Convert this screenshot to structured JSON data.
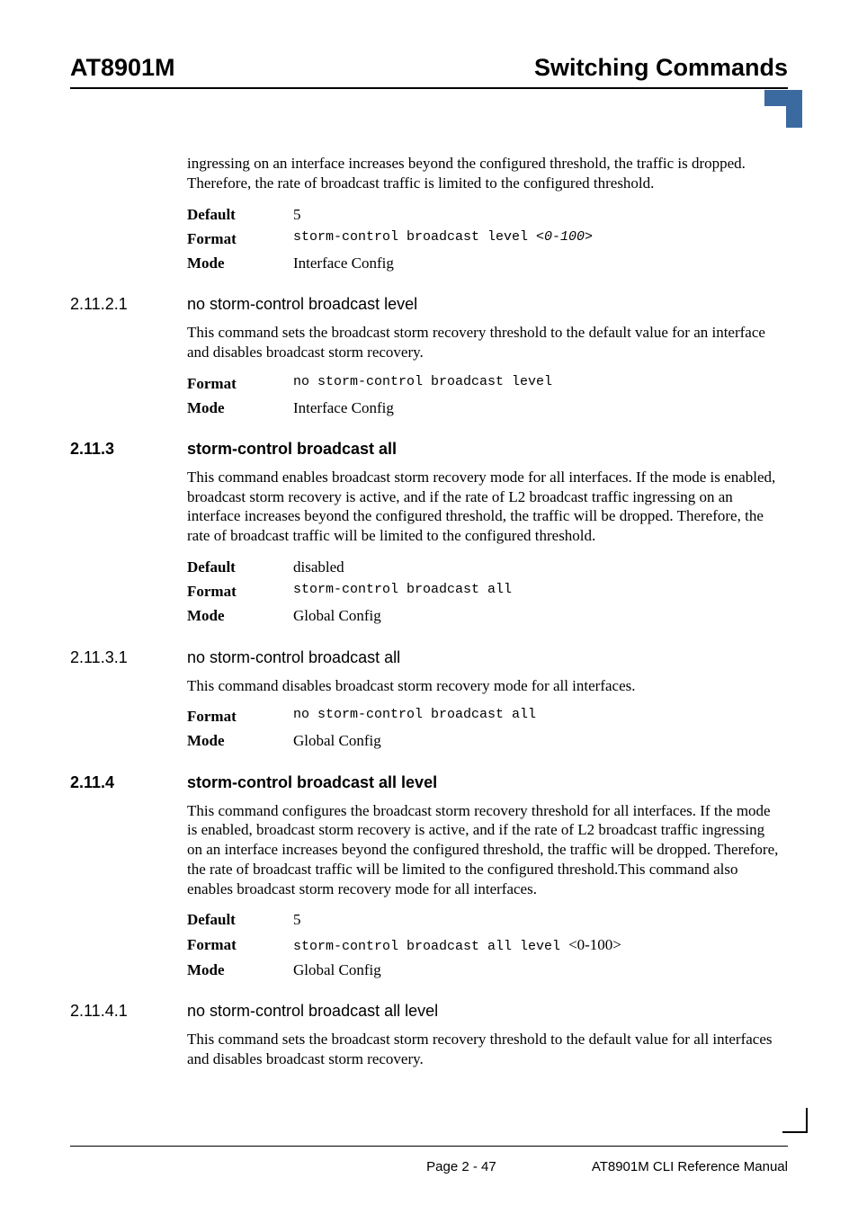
{
  "header": {
    "left": "AT8901M",
    "right": "Switching Commands"
  },
  "intro_para": "ingressing on an interface increases beyond the configured threshold, the traffic is dropped. Therefore, the rate of broadcast traffic is limited to the configured threshold.",
  "kv_intro": {
    "default_label": "Default",
    "default_value": "5",
    "format_label": "Format",
    "format_cmd": "storm-control broadcast level ",
    "format_arg": "<0-100>",
    "mode_label": "Mode",
    "mode_value": "Interface Config"
  },
  "s1": {
    "num": "2.11.2.1",
    "title": "no storm-control broadcast level",
    "para": "This command sets the broadcast storm recovery threshold to the default value for an interface and disables broadcast storm recovery.",
    "format_label": "Format",
    "format_cmd": "no storm-control broadcast level",
    "mode_label": "Mode",
    "mode_value": "Interface Config"
  },
  "s2": {
    "num": "2.11.3",
    "title": "storm-control broadcast all",
    "para": "This command enables broadcast storm recovery mode for all interfaces. If the mode is enabled, broadcast storm recovery is active, and if the rate of L2 broadcast traffic ingressing on an interface increases beyond the configured threshold, the traffic will be dropped. Therefore, the rate of broadcast traffic will be limited to the configured threshold.",
    "default_label": "Default",
    "default_value": "disabled",
    "format_label": "Format",
    "format_cmd": "storm-control broadcast all",
    "mode_label": "Mode",
    "mode_value": "Global Config"
  },
  "s3": {
    "num": "2.11.3.1",
    "title": "no storm-control broadcast all",
    "para": "This command disables broadcast storm recovery mode for all interfaces.",
    "format_label": "Format",
    "format_cmd": "no storm-control broadcast all",
    "mode_label": "Mode",
    "mode_value": "Global Config"
  },
  "s4": {
    "num": "2.11.4",
    "title": "storm-control broadcast all level",
    "para": "This command configures the broadcast storm recovery threshold for all interfaces. If the mode is enabled, broadcast storm recovery is active, and if the rate of L2 broadcast traffic ingressing on an interface increases beyond the configured threshold, the traffic will be dropped. Therefore, the rate of broadcast traffic will be limited to the configured threshold.This command also enables broadcast storm recovery mode for all interfaces.",
    "default_label": "Default",
    "default_value": "5",
    "format_label": "Format",
    "format_cmd": "storm-control broadcast all level ",
    "format_arg": "<0-100>",
    "mode_label": "Mode",
    "mode_value": "Global Config"
  },
  "s5": {
    "num": "2.11.4.1",
    "title": "no storm-control broadcast all level",
    "para": "This command sets the broadcast storm recovery threshold to the default value for all interfaces and disables broadcast storm recovery."
  },
  "footer": {
    "page": "Page 2 - 47",
    "manual": "AT8901M CLI Reference Manual"
  }
}
